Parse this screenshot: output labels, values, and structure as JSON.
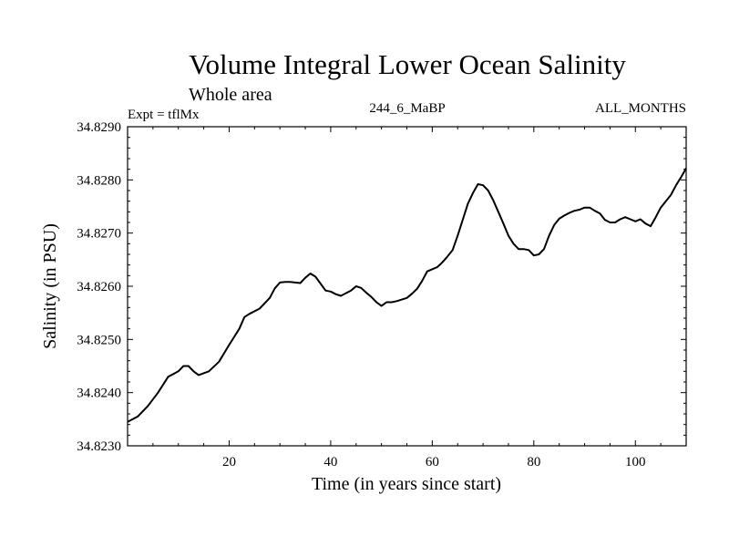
{
  "chart_data": {
    "type": "line",
    "title": "Volume Integral Lower Ocean Salinity",
    "subtitle": "Whole area",
    "experiment_label": "Expt = tflMx",
    "center_label": "244_6_MaBP",
    "right_label": "ALL_MONTHS",
    "xlabel": "Time (in years since start)",
    "ylabel": "Salinity (in PSU)",
    "xlim": [
      0,
      110
    ],
    "ylim": [
      34.823,
      34.829
    ],
    "x_ticks": [
      20,
      40,
      60,
      80,
      100
    ],
    "x_tick_labels": [
      "20",
      "40",
      "60",
      "80",
      "100"
    ],
    "y_ticks": [
      34.823,
      34.824,
      34.825,
      34.826,
      34.827,
      34.828,
      34.829
    ],
    "y_tick_labels": [
      "34.8230",
      "34.8240",
      "34.8250",
      "34.8260",
      "34.8270",
      "34.8280",
      "34.8290"
    ],
    "grid": false,
    "series": [
      {
        "name": "salinity",
        "color": "#000000",
        "x": [
          0,
          2,
          4,
          6,
          8,
          9,
          10,
          11,
          12,
          13,
          14,
          16,
          18,
          20,
          22,
          23,
          24,
          26,
          28,
          29,
          30,
          31,
          32,
          34,
          35,
          36,
          37,
          38,
          39,
          40,
          41,
          42,
          44,
          45,
          46,
          47,
          48,
          49,
          50,
          51,
          52,
          53,
          55,
          56,
          57,
          58,
          59,
          60,
          61,
          62,
          63,
          64,
          65,
          66,
          67,
          68,
          69,
          70,
          71,
          72,
          73,
          74,
          75,
          76,
          77,
          78,
          79,
          80,
          81,
          82,
          83,
          84,
          85,
          86,
          87,
          88,
          89,
          90,
          91,
          92,
          93,
          94,
          95,
          96,
          97,
          98,
          99,
          100,
          101,
          102,
          103,
          104,
          105,
          106,
          107,
          108,
          109,
          110
        ],
        "y": [
          34.82345,
          34.82355,
          34.82375,
          34.824,
          34.8243,
          34.82435,
          34.8244,
          34.8245,
          34.8245,
          34.8244,
          34.82433,
          34.8244,
          34.82458,
          34.8249,
          34.8252,
          34.82542,
          34.82548,
          34.82558,
          34.82578,
          34.82596,
          34.82607,
          34.82608,
          34.82608,
          34.82606,
          34.82616,
          34.82624,
          34.82618,
          34.82605,
          34.82592,
          34.8259,
          34.82585,
          34.82582,
          34.82592,
          34.826,
          34.82597,
          34.82588,
          34.8258,
          34.8257,
          34.82563,
          34.8257,
          34.8257,
          34.82572,
          34.82578,
          34.82586,
          34.82595,
          34.8261,
          34.82628,
          34.82632,
          34.82636,
          34.82645,
          34.82656,
          34.82668,
          34.82695,
          34.82725,
          34.82755,
          34.82775,
          34.82792,
          34.8279,
          34.8278,
          34.82762,
          34.8274,
          34.82718,
          34.82695,
          34.8268,
          34.8267,
          34.8267,
          34.82668,
          34.82658,
          34.8266,
          34.8267,
          34.82695,
          34.82715,
          34.82727,
          34.82733,
          34.82738,
          34.82742,
          34.82744,
          34.82748,
          34.82748,
          34.82742,
          34.82737,
          34.82725,
          34.8272,
          34.8272,
          34.82726,
          34.8273,
          34.82726,
          34.82722,
          34.82726,
          34.82718,
          34.82713,
          34.8273,
          34.82748,
          34.8276,
          34.82772,
          34.8279,
          34.82805,
          34.82822
        ]
      }
    ]
  }
}
